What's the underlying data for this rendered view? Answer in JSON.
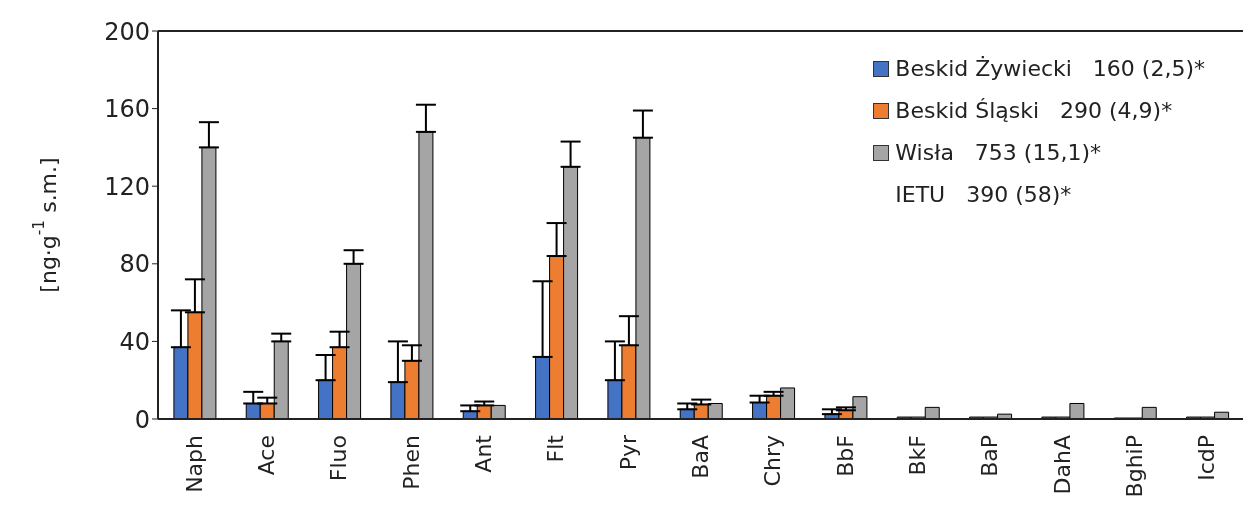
{
  "chart_data": {
    "type": "bar",
    "ylabel": "[ng·g$^{-1}$ s.m.]",
    "categories": [
      "Naph",
      "Ace",
      "Fluo",
      "Phen",
      "Ant",
      "Flt",
      "Pyr",
      "BaA",
      "Chry",
      "BbF",
      "BkF",
      "BaP",
      "DahA",
      "BghiP",
      "IcdP"
    ],
    "series": [
      {
        "name": "Beskid Żywiecki   160 (2,5)*",
        "color": "#4472c4",
        "values": [
          37,
          8,
          20,
          19,
          4,
          32,
          20,
          5,
          8.5,
          2.5,
          1,
          1,
          1,
          0.5,
          1
        ],
        "errors": [
          [
            37,
            56
          ],
          [
            8,
            14
          ],
          [
            20,
            33
          ],
          [
            19,
            40
          ],
          [
            4,
            7
          ],
          [
            32,
            71
          ],
          [
            20,
            40
          ],
          [
            5,
            8
          ],
          [
            8.5,
            12
          ],
          [
            2.5,
            5
          ],
          null,
          null,
          null,
          null,
          null
        ]
      },
      {
        "name": "Beskid Śląski   290 (4,9)*",
        "color": "#ed7d31",
        "values": [
          55,
          8,
          37,
          30,
          7,
          84,
          38,
          7.5,
          12,
          4.5,
          1,
          1,
          1,
          0.5,
          1
        ],
        "errors": [
          [
            55,
            72
          ],
          [
            8,
            11
          ],
          [
            37,
            45
          ],
          [
            30,
            38
          ],
          [
            7,
            9
          ],
          [
            84,
            101
          ],
          [
            38,
            53
          ],
          [
            7.5,
            10
          ],
          [
            12,
            14
          ],
          [
            4.5,
            6
          ],
          null,
          null,
          null,
          null,
          null
        ]
      },
      {
        "name": "Wisła   753 (15,1)*",
        "color": "#a5a5a5",
        "values": [
          140,
          40,
          80,
          148,
          7,
          130,
          145,
          8,
          16,
          11.5,
          6,
          2.5,
          8,
          6,
          3.5
        ],
        "errors": [
          [
            140,
            153
          ],
          [
            40,
            44
          ],
          [
            80,
            87
          ],
          [
            148,
            162
          ],
          null,
          [
            130,
            143
          ],
          [
            145,
            159
          ],
          null,
          null,
          null,
          null,
          null,
          null,
          null,
          null
        ]
      }
    ],
    "annotations": [
      "IETU   390 (58)*"
    ],
    "ylim": [
      0,
      200
    ],
    "yticks": [
      0,
      40,
      80,
      120,
      160,
      200
    ],
    "legend": "top right",
    "grid": false
  }
}
